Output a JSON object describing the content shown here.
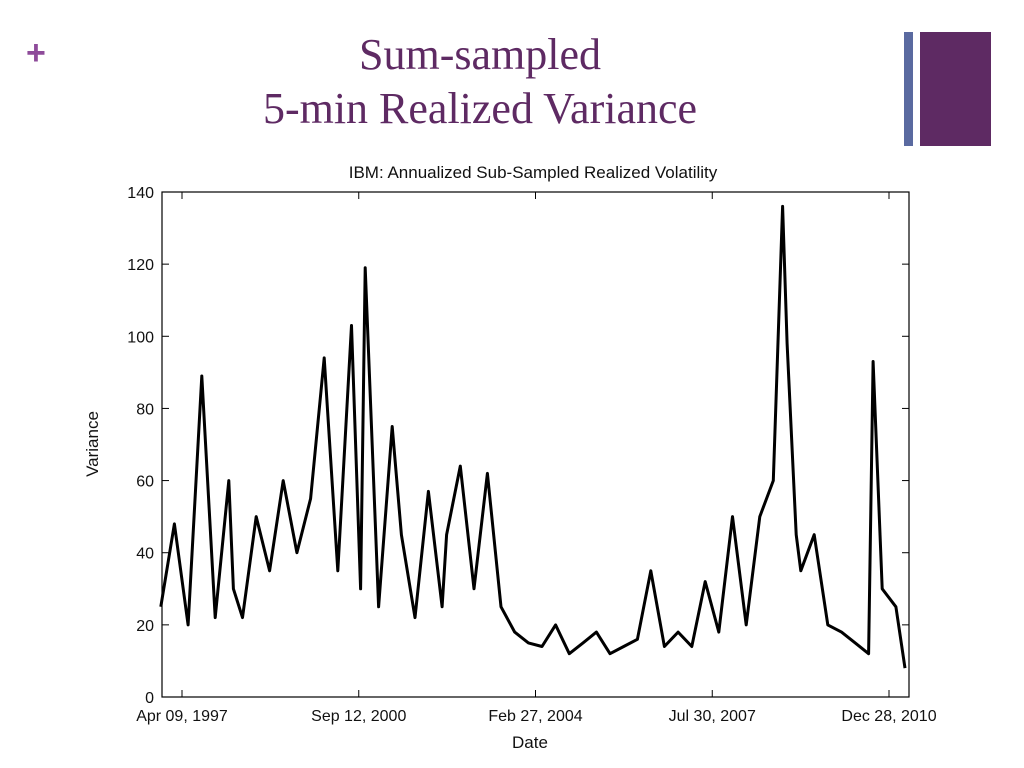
{
  "slide": {
    "plus_symbol": "+",
    "title_line1": "Sum-sampled",
    "title_line2": "5-min Realized Variance"
  },
  "colors": {
    "accent": "#8e4b9a",
    "title": "#5e2a63",
    "deco_thin": "#5a6aa0",
    "deco_thick": "#5e2a63",
    "series": "#000000"
  },
  "chart_data": {
    "type": "line",
    "title": "IBM: Annualized Sub-Sampled Realized Volatility",
    "xlabel": "Date",
    "ylabel": "Variance",
    "x_ticks": [
      "Apr 09, 1997",
      "Sep 12, 2000",
      "Feb 27, 2004",
      "Jul 30, 2007",
      "Dec 28, 2010"
    ],
    "y_ticks": [
      0,
      20,
      40,
      60,
      80,
      100,
      120,
      140
    ],
    "xlim": [
      "1997-04-09",
      "2010-12-28"
    ],
    "ylim": [
      0,
      140
    ],
    "grid": false,
    "legend": "none",
    "series": [
      {
        "x": [
          "1997-04",
          "1997-07",
          "1997-10",
          "1998-01",
          "1998-04",
          "1998-07",
          "1998-08",
          "1998-10",
          "1999-01",
          "1999-04",
          "1999-07",
          "1999-10",
          "2000-01",
          "2000-04",
          "2000-07",
          "2000-10",
          "2000-12",
          "2001-01",
          "2001-04",
          "2001-07",
          "2001-09",
          "2001-12",
          "2002-03",
          "2002-06",
          "2002-07",
          "2002-10",
          "2003-01",
          "2003-04",
          "2003-07",
          "2003-10",
          "2004-01",
          "2004-04",
          "2004-07",
          "2004-10",
          "2005-01",
          "2005-04",
          "2005-07",
          "2005-10",
          "2006-01",
          "2006-04",
          "2006-07",
          "2006-10",
          "2007-01",
          "2007-04",
          "2007-07",
          "2007-10",
          "2008-01",
          "2008-04",
          "2008-07",
          "2008-09",
          "2008-10",
          "2008-12",
          "2009-01",
          "2009-04",
          "2009-07",
          "2009-10",
          "2010-01",
          "2010-04",
          "2010-05",
          "2010-07",
          "2010-10",
          "2010-12"
        ],
        "values": [
          25,
          48,
          20,
          89,
          22,
          60,
          30,
          22,
          50,
          35,
          60,
          40,
          55,
          94,
          35,
          103,
          30,
          119,
          25,
          75,
          45,
          22,
          57,
          25,
          45,
          64,
          30,
          62,
          25,
          18,
          15,
          14,
          20,
          12,
          15,
          18,
          12,
          14,
          16,
          35,
          14,
          18,
          14,
          32,
          18,
          50,
          20,
          50,
          60,
          136,
          98,
          45,
          35,
          45,
          20,
          18,
          15,
          12,
          93,
          30,
          25,
          8
        ]
      }
    ]
  }
}
